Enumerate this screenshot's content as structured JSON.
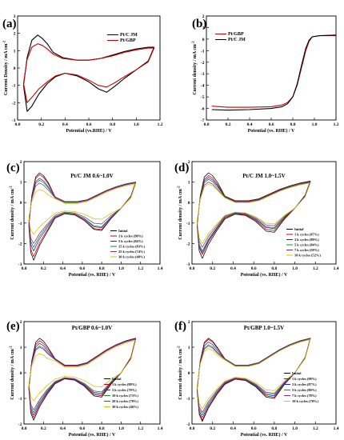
{
  "chart_data": [
    {
      "type": "line",
      "panel": "(a)",
      "title": "",
      "xlabel": "Potential (vs.RHE) / V",
      "ylabel": "Current Density / mA cm-2",
      "ylabel_prefix": "Current Density / mA cm",
      "ylabel_sup": "-2",
      "xlim": [
        0,
        1.2
      ],
      "ylim": [
        -3,
        3
      ],
      "xticks": [
        "0.0",
        "0.2",
        "0.4",
        "0.6",
        "0.8",
        "1.0",
        "1.2"
      ],
      "yticks": [
        "-3",
        "-2",
        "-1",
        "0",
        "1",
        "2",
        "3"
      ],
      "legend_position": "top-right",
      "series": [
        {
          "name": "Pt/C JM",
          "color": "#000000",
          "upper": [
            [
              0.05,
              -1.0
            ],
            [
              0.08,
              0.6
            ],
            [
              0.12,
              1.6
            ],
            [
              0.17,
              1.9
            ],
            [
              0.21,
              1.7
            ],
            [
              0.25,
              1.4
            ],
            [
              0.3,
              0.9
            ],
            [
              0.38,
              0.6
            ],
            [
              0.5,
              0.45
            ],
            [
              0.6,
              0.45
            ],
            [
              0.7,
              0.55
            ],
            [
              0.8,
              0.75
            ],
            [
              0.9,
              0.95
            ],
            [
              1.0,
              1.1
            ],
            [
              1.1,
              1.2
            ],
            [
              1.15,
              1.2
            ]
          ],
          "lower": [
            [
              1.15,
              1.2
            ],
            [
              1.1,
              0.4
            ],
            [
              1.0,
              -0.1
            ],
            [
              0.9,
              -0.6
            ],
            [
              0.82,
              -1.05
            ],
            [
              0.75,
              -1.4
            ],
            [
              0.68,
              -1.2
            ],
            [
              0.6,
              -0.8
            ],
            [
              0.5,
              -0.45
            ],
            [
              0.4,
              -0.3
            ],
            [
              0.32,
              -0.5
            ],
            [
              0.25,
              -0.9
            ],
            [
              0.18,
              -1.5
            ],
            [
              0.12,
              -2.2
            ],
            [
              0.08,
              -2.5
            ],
            [
              0.05,
              -1.0
            ]
          ]
        },
        {
          "name": "Pt/GBP",
          "color": "#cc0000",
          "upper": [
            [
              0.05,
              -0.9
            ],
            [
              0.08,
              0.5
            ],
            [
              0.12,
              1.2
            ],
            [
              0.17,
              1.4
            ],
            [
              0.21,
              1.3
            ],
            [
              0.25,
              1.1
            ],
            [
              0.3,
              0.8
            ],
            [
              0.38,
              0.55
            ],
            [
              0.5,
              0.45
            ],
            [
              0.6,
              0.45
            ],
            [
              0.7,
              0.55
            ],
            [
              0.8,
              0.7
            ],
            [
              0.9,
              0.9
            ],
            [
              1.0,
              1.05
            ],
            [
              1.1,
              1.15
            ],
            [
              1.15,
              1.15
            ]
          ],
          "lower": [
            [
              1.15,
              1.15
            ],
            [
              1.1,
              0.35
            ],
            [
              1.0,
              -0.1
            ],
            [
              0.9,
              -0.5
            ],
            [
              0.82,
              -0.85
            ],
            [
              0.75,
              -1.1
            ],
            [
              0.68,
              -1.0
            ],
            [
              0.6,
              -0.7
            ],
            [
              0.5,
              -0.4
            ],
            [
              0.4,
              -0.3
            ],
            [
              0.32,
              -0.45
            ],
            [
              0.25,
              -0.8
            ],
            [
              0.18,
              -1.2
            ],
            [
              0.12,
              -1.7
            ],
            [
              0.08,
              -2.0
            ],
            [
              0.05,
              -0.9
            ]
          ]
        }
      ]
    },
    {
      "type": "line",
      "panel": "(b)",
      "title": "",
      "xlabel": "Potential (vs. RHE) / V",
      "ylabel": "Current density / mA cm-2",
      "ylabel_prefix": "Current density / mA cm",
      "ylabel_sup": "-2",
      "xlim": [
        0,
        1.2
      ],
      "ylim": [
        -7,
        2
      ],
      "xticks": [
        "0.0",
        "0.2",
        "0.4",
        "0.6",
        "0.8",
        "1.0",
        "1.2"
      ],
      "yticks": [
        "-7",
        "-6",
        "-5",
        "-4",
        "-3",
        "-2",
        "-1",
        "0",
        "1",
        "2"
      ],
      "legend_position": "top-left",
      "series": [
        {
          "name": "Pt/GBP",
          "color": "#cc0000",
          "points": [
            [
              0.05,
              -5.8
            ],
            [
              0.2,
              -5.9
            ],
            [
              0.4,
              -5.9
            ],
            [
              0.6,
              -5.85
            ],
            [
              0.7,
              -5.7
            ],
            [
              0.75,
              -5.5
            ],
            [
              0.8,
              -5.0
            ],
            [
              0.84,
              -4.0
            ],
            [
              0.88,
              -2.5
            ],
            [
              0.92,
              -1.0
            ],
            [
              0.95,
              -0.2
            ],
            [
              0.98,
              0.2
            ],
            [
              1.05,
              0.3
            ],
            [
              1.2,
              0.3
            ]
          ]
        },
        {
          "name": "Pt/C  JM",
          "color": "#000000",
          "points": [
            [
              0.05,
              -6.1
            ],
            [
              0.2,
              -6.15
            ],
            [
              0.4,
              -6.1
            ],
            [
              0.6,
              -6.0
            ],
            [
              0.7,
              -5.85
            ],
            [
              0.75,
              -5.6
            ],
            [
              0.8,
              -5.0
            ],
            [
              0.84,
              -3.9
            ],
            [
              0.88,
              -2.3
            ],
            [
              0.92,
              -0.8
            ],
            [
              0.95,
              -0.1
            ],
            [
              0.98,
              0.2
            ],
            [
              1.05,
              0.3
            ],
            [
              1.2,
              0.35
            ]
          ]
        }
      ]
    },
    {
      "type": "line",
      "panel": "(c)",
      "title": "Pt/C JM 0.6~1.0V",
      "xlabel": "Potential (vs. RHE) / V",
      "ylabel": "Current density / mA cm-2",
      "ylabel_prefix": "Current density / mA cm",
      "ylabel_sup": "-2",
      "xlim": [
        0,
        1.4
      ],
      "ylim": [
        -3,
        2.5
      ],
      "xticks": [
        "0.0",
        "0.2",
        "0.4",
        "0.6",
        "0.8",
        "1.0",
        "1.2",
        "1.4"
      ],
      "yticks": [
        "-3",
        "-2",
        "-1",
        "0",
        "1",
        "2"
      ],
      "legend_position": "bottom-right",
      "series": [
        {
          "name": "Initial",
          "color": "#000000",
          "peak": 1.9,
          "min": -2.8,
          "orr": -1.2,
          "hump": 0.35
        },
        {
          "name": "1 k cycles (98%)",
          "color": "#cc0000",
          "peak": 1.8,
          "min": -2.6,
          "orr": -1.15,
          "hump": 0.35
        },
        {
          "name": "5 k cycles (84%)",
          "color": "#2222cc",
          "peak": 1.6,
          "min": -2.3,
          "orr": -1.05,
          "hump": 0.33
        },
        {
          "name": "15 k cycles (83%)",
          "color": "#1a8a2e",
          "peak": 1.5,
          "min": -2.1,
          "orr": -1.0,
          "hump": 0.32
        },
        {
          "name": "25 k cycles (74%)",
          "color": "#8a2a8a",
          "peak": 1.35,
          "min": -1.9,
          "orr": -0.85,
          "hump": 0.3
        },
        {
          "name": "30 k cycles (48%)",
          "color": "#d4c400",
          "peak": 1.0,
          "min": -1.4,
          "orr": -0.6,
          "hump": 0.25
        }
      ]
    },
    {
      "type": "line",
      "panel": "(d)",
      "title": "Pt/C JM 1.0~1.5V",
      "xlabel": "Potential (vs. RHE) / V",
      "ylabel": "Current density / mA cm-2",
      "ylabel_prefix": "Current density / mA cm",
      "ylabel_sup": "-2",
      "xlim": [
        0,
        1.4
      ],
      "ylim": [
        -3,
        2.5
      ],
      "xticks": [
        "0.0",
        "0.2",
        "0.4",
        "0.6",
        "0.8",
        "1.0",
        "1.2",
        "1.4"
      ],
      "yticks": [
        "-3",
        "-2",
        "-1",
        "0",
        "1",
        "2"
      ],
      "legend_position": "bottom-right",
      "series": [
        {
          "name": "Initial",
          "color": "#000000",
          "peak": 1.9,
          "min": -2.7,
          "orr": -1.3,
          "hump": 0.4
        },
        {
          "name": "1 k cycles (87%)",
          "color": "#cc0000",
          "peak": 1.75,
          "min": -2.5,
          "orr": -1.2,
          "hump": 0.38
        },
        {
          "name": "3 k cycles (89%)",
          "color": "#2222cc",
          "peak": 1.65,
          "min": -2.4,
          "orr": -1.1,
          "hump": 0.36
        },
        {
          "name": "5 k cycles (84%)",
          "color": "#1a8a2e",
          "peak": 1.55,
          "min": -2.3,
          "orr": -1.05,
          "hump": 0.35
        },
        {
          "name": "7 k cycles (59%)",
          "color": "#8a2a8a",
          "peak": 1.4,
          "min": -2.1,
          "orr": -0.95,
          "hump": 0.33
        },
        {
          "name": "10 k cycles (52%)",
          "color": "#d4c400",
          "peak": 1.3,
          "min": -1.9,
          "orr": -0.85,
          "hump": 0.3
        }
      ]
    },
    {
      "type": "line",
      "panel": "(e)",
      "title": "Pt/GBP 0.6~1.0V",
      "xlabel": "Potential (vs. RHE) / V",
      "ylabel": "Current density / mA cm-2",
      "ylabel_prefix": "Current density / mA cm",
      "ylabel_sup": "-2",
      "xlim": [
        0,
        1.4
      ],
      "ylim": [
        -2,
        2
      ],
      "xticks": [
        "0.0",
        "0.2",
        "0.4",
        "0.6",
        "0.8",
        "1.0",
        "1.2",
        "1.4"
      ],
      "yticks": [
        "-2",
        "-1",
        "0",
        "1",
        "2"
      ],
      "legend_position": "bottom-right",
      "series": [
        {
          "name": "Initial",
          "color": "#000000",
          "peak": 1.35,
          "min": -1.85,
          "orr": -0.95,
          "hump": 0.3
        },
        {
          "name": "1 k cycles (88%)",
          "color": "#cc0000",
          "peak": 1.25,
          "min": -1.75,
          "orr": -0.9,
          "hump": 0.3
        },
        {
          "name": "5 k cycles (79%)",
          "color": "#2222cc",
          "peak": 1.15,
          "min": -1.65,
          "orr": -0.85,
          "hump": 0.28
        },
        {
          "name": "10 k cycles (73%)",
          "color": "#1a8a2e",
          "peak": 1.05,
          "min": -1.55,
          "orr": -0.8,
          "hump": 0.27
        },
        {
          "name": "20 k cycles (70%)",
          "color": "#8a2a8a",
          "peak": 1.0,
          "min": -1.45,
          "orr": -0.75,
          "hump": 0.26
        },
        {
          "name": "30 k cycles (46%)",
          "color": "#d4c400",
          "peak": 0.75,
          "min": -1.1,
          "orr": -0.55,
          "hump": 0.22
        }
      ]
    },
    {
      "type": "line",
      "panel": "(f)",
      "title": "Pt/GBP 1.0~1.5V",
      "xlabel": "Potential (vs. RHE) / V",
      "ylabel": "Current density / mA cm-2",
      "ylabel_prefix": "Current density / mA cm",
      "ylabel_sup": "-2",
      "xlim": [
        0,
        1.4
      ],
      "ylim": [
        -2,
        2
      ],
      "xticks": [
        "0.0",
        "0.2",
        "0.4",
        "0.6",
        "0.8",
        "1.0",
        "1.2",
        "1.4"
      ],
      "yticks": [
        "-2",
        "-1",
        "0",
        "1",
        "2"
      ],
      "legend_position": "bottom-right",
      "series": [
        {
          "name": "Initial",
          "color": "#000000",
          "peak": 1.35,
          "min": -1.9,
          "orr": -1.0,
          "hump": 0.3
        },
        {
          "name": "1 k cycles (98%)",
          "color": "#cc0000",
          "peak": 1.3,
          "min": -1.85,
          "orr": -0.95,
          "hump": 0.3
        },
        {
          "name": "3 k cycles (87%)",
          "color": "#2222cc",
          "peak": 1.2,
          "min": -1.75,
          "orr": -0.9,
          "hump": 0.29
        },
        {
          "name": "5 k cycles (80%)",
          "color": "#1a8a2e",
          "peak": 1.1,
          "min": -1.65,
          "orr": -0.85,
          "hump": 0.28
        },
        {
          "name": "7 k cycles (78%)",
          "color": "#8a2a8a",
          "peak": 1.05,
          "min": -1.55,
          "orr": -0.8,
          "hump": 0.27
        },
        {
          "name": "10 k cycles (70%)",
          "color": "#d4c400",
          "peak": 0.95,
          "min": -1.4,
          "orr": -0.7,
          "hump": 0.25
        }
      ]
    }
  ]
}
